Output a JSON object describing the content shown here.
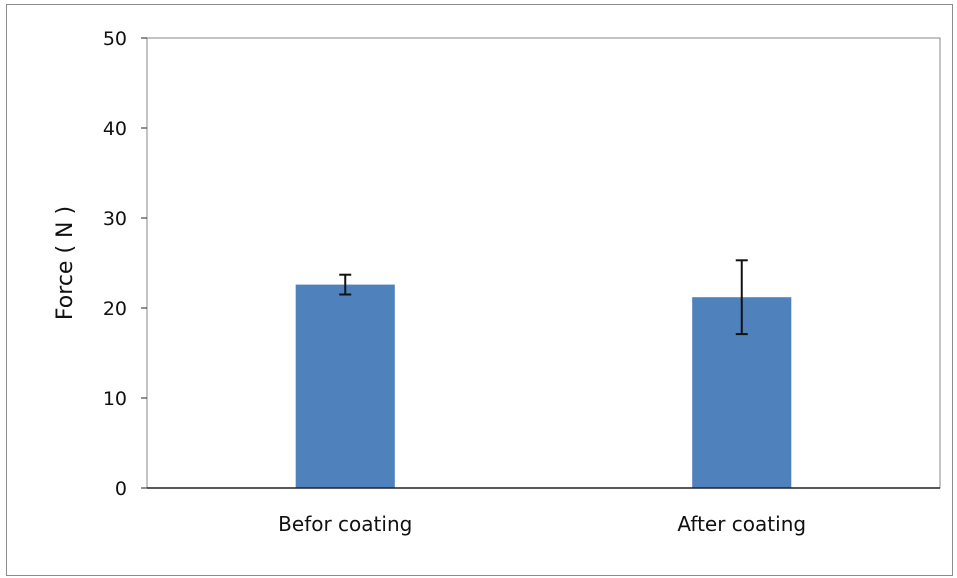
{
  "chart_data": {
    "type": "bar",
    "title": "",
    "xlabel": "",
    "ylabel": "Force ( N )",
    "ylim": [
      0,
      50
    ],
    "yticks": [
      0,
      10,
      20,
      30,
      40,
      50
    ],
    "categories": [
      "Befor coating",
      "After coating"
    ],
    "values": [
      22.6,
      21.2
    ],
    "errors": [
      1.1,
      4.1
    ],
    "bar_color": "#4f81bd",
    "grid": false,
    "legend": "none"
  }
}
